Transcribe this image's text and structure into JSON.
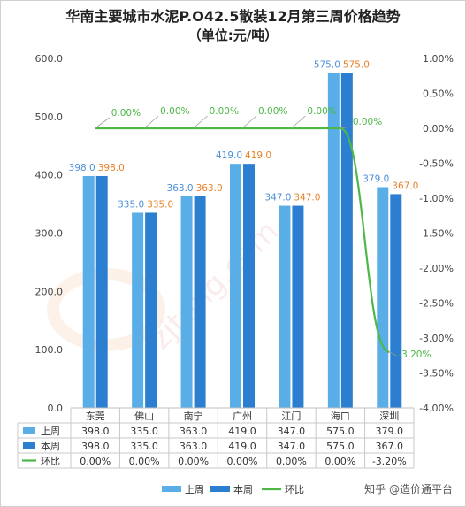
{
  "chart_data": {
    "type": "bar",
    "title": "华南主要城市水泥P.O42.5散装12月第三周价格趋势",
    "subtitle": "（单位:元/吨）",
    "categories": [
      "东莞",
      "佛山",
      "南宁",
      "广州",
      "江门",
      "海口",
      "深圳"
    ],
    "series": [
      {
        "name": "上周",
        "type": "bar",
        "axis": "left",
        "color": "#5aaee8",
        "label_color": "#4d90d6",
        "values": [
          398.0,
          335.0,
          363.0,
          419.0,
          347.0,
          575.0,
          379.0
        ]
      },
      {
        "name": "本周",
        "type": "bar",
        "axis": "left",
        "color": "#2c7fd0",
        "label_color": "#e8822a",
        "values": [
          398.0,
          335.0,
          363.0,
          419.0,
          347.0,
          575.0,
          367.0
        ]
      },
      {
        "name": "环比",
        "type": "line",
        "axis": "right",
        "color": "#4db848",
        "label_color": "#4db848",
        "values": [
          0.0,
          0.0,
          0.0,
          0.0,
          0.0,
          0.0,
          -3.2
        ]
      }
    ],
    "left_axis": {
      "range": [
        0,
        600
      ],
      "ticks": [
        0,
        100,
        200,
        300,
        400,
        500,
        600
      ],
      "tick_labels": [
        "0.0",
        "100.0",
        "200.0",
        "300.0",
        "400.0",
        "500.0",
        "600.0"
      ]
    },
    "right_axis": {
      "range": [
        -4.0,
        1.0
      ],
      "ticks": [
        1.0,
        0.5,
        0.0,
        -0.5,
        -1.0,
        -1.5,
        -2.0,
        -2.5,
        -3.0,
        -3.5,
        -4.0
      ],
      "tick_labels": [
        "1.00%",
        "0.50%",
        "0.00%",
        "-0.50%",
        "-1.00%",
        "-1.50%",
        "-2.00%",
        "-2.50%",
        "-3.00%",
        "-3.50%",
        "-4.00%"
      ]
    },
    "bar_labels": {
      "上周": [
        "398.0",
        "335.0",
        "363.0",
        "419.0",
        "347.0",
        "575.0",
        "379.0"
      ],
      "本周": [
        "398.0",
        "335.0",
        "363.0",
        "419.0",
        "347.0",
        "575.0",
        "367.0"
      ]
    },
    "line_labels": [
      "0.00%",
      "0.00%",
      "0.00%",
      "0.00%",
      "0.00%",
      "0.00%",
      "-3.20%"
    ],
    "table": {
      "rows": [
        {
          "name": "上周",
          "values": [
            "398.0",
            "335.0",
            "363.0",
            "419.0",
            "347.0",
            "575.0",
            "379.0"
          ]
        },
        {
          "name": "本周",
          "values": [
            "398.0",
            "335.0",
            "363.0",
            "419.0",
            "347.0",
            "575.0",
            "367.0"
          ]
        },
        {
          "name": "环比",
          "values": [
            "0.00%",
            "0.00%",
            "0.00%",
            "0.00%",
            "0.00%",
            "0.00%",
            "-3.20%"
          ]
        }
      ]
    },
    "legend": {
      "placement": "bottom",
      "items": [
        "上周",
        "本周",
        "环比"
      ]
    },
    "grid": false
  },
  "watermark": {
    "credit": "知乎 @造价通平台",
    "logo_text": "zjtong.com"
  }
}
